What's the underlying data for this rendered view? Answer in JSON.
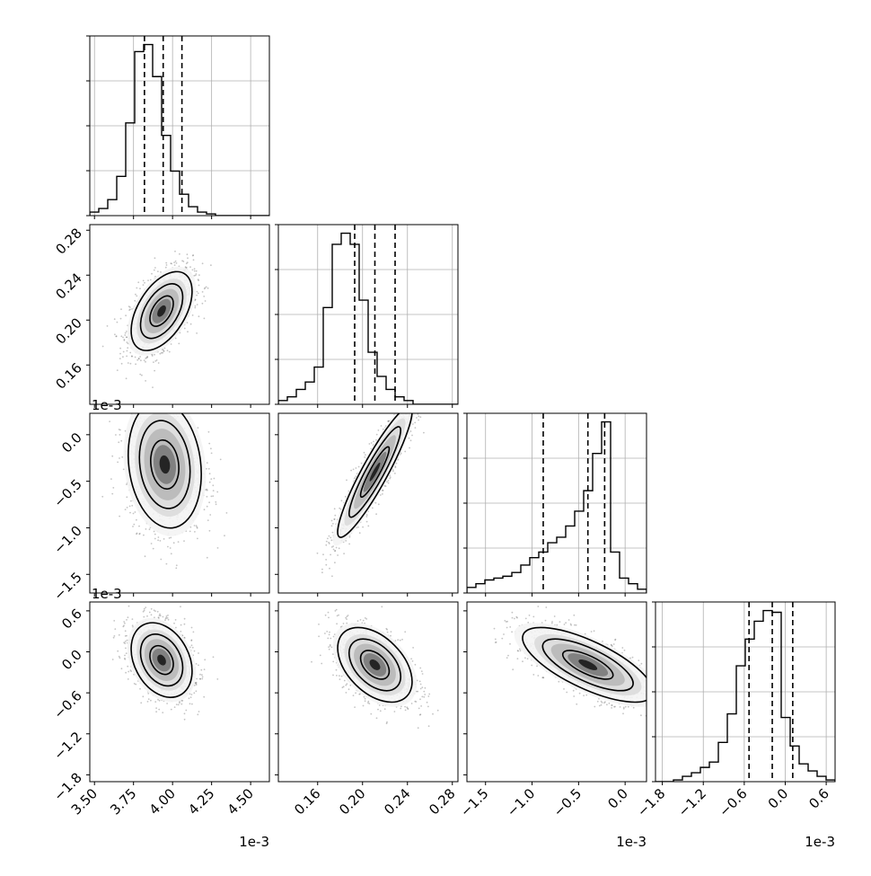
{
  "chart_data": {
    "type": "corner",
    "title": "",
    "grid": true,
    "offset_label": "1e-3",
    "parameters": [
      {
        "index": 0,
        "range": [
          3.47,
          4.62
        ],
        "scale": 0.001,
        "ticks": [
          3.5,
          3.75,
          4.0,
          4.25,
          4.5
        ],
        "tick_labels": [
          "3.50",
          "3.75",
          "4.00",
          "4.25",
          "4.50"
        ],
        "quantiles": [
          3.82,
          3.94,
          4.06
        ]
      },
      {
        "index": 1,
        "range": [
          0.125,
          0.285
        ],
        "scale": 1,
        "ticks": [
          0.16,
          0.2,
          0.24,
          0.28
        ],
        "tick_labels": [
          "0.16",
          "0.20",
          "0.24",
          "0.28"
        ],
        "quantiles": [
          0.193,
          0.211,
          0.229
        ]
      },
      {
        "index": 2,
        "range": [
          -1.7,
          0.23
        ],
        "scale": 0.001,
        "ticks": [
          -1.5,
          -1.0,
          -0.5,
          0.0
        ],
        "tick_labels": [
          "−1.5",
          "−1.0",
          "−0.5",
          "0.0"
        ],
        "quantiles": [
          -0.88,
          -0.4,
          -0.22
        ]
      },
      {
        "index": 3,
        "range": [
          -1.9,
          0.73
        ],
        "scale": 0.001,
        "ticks": [
          -1.8,
          -1.2,
          -0.6,
          0.0,
          0.6
        ],
        "tick_labels": [
          "−1.8",
          "−1.2",
          "−0.6",
          "0.0",
          "0.6"
        ],
        "quantiles": [
          -0.53,
          -0.19,
          0.11
        ]
      }
    ],
    "histograms": [
      {
        "param": 0,
        "edges_start": 3.47,
        "bin_width": 0.0575,
        "counts": [
          2,
          4,
          9,
          22,
          52,
          92,
          96,
          78,
          45,
          25,
          12,
          5,
          2,
          1,
          0,
          0,
          0,
          0,
          0,
          0
        ]
      },
      {
        "param": 1,
        "edges_start": 0.125,
        "bin_width": 0.008,
        "counts": [
          2,
          4,
          8,
          12,
          20,
          52,
          86,
          92,
          86,
          56,
          28,
          15,
          8,
          4,
          2,
          0,
          0,
          0,
          0,
          0
        ]
      },
      {
        "param": 2,
        "edges_start": -1.7,
        "bin_width": 0.0965,
        "counts": [
          3,
          5,
          7,
          8,
          9,
          11,
          15,
          19,
          22,
          27,
          30,
          36,
          44,
          55,
          75,
          92,
          22,
          8,
          5,
          2
        ]
      },
      {
        "param": 3,
        "edges_start": -1.9,
        "bin_width": 0.1315,
        "counts": [
          0,
          0,
          1,
          3,
          5,
          8,
          11,
          22,
          38,
          65,
          80,
          90,
          96,
          95,
          36,
          20,
          10,
          6,
          3,
          1
        ]
      }
    ],
    "pairs": [
      {
        "x": 0,
        "y": 1,
        "mean": [
          3.93,
          0.208
        ],
        "sd": [
          0.1,
          0.018
        ],
        "rho": 0.5
      },
      {
        "x": 0,
        "y": 2,
        "mean": [
          3.95,
          -0.32
        ],
        "sd": [
          0.12,
          0.35
        ],
        "rho": -0.15
      },
      {
        "x": 1,
        "y": 2,
        "mean": [
          0.211,
          -0.4
        ],
        "sd": [
          0.017,
          0.36
        ],
        "rho": 0.92
      },
      {
        "x": 0,
        "y": 3,
        "mean": [
          3.93,
          -0.12
        ],
        "sd": [
          0.1,
          0.28
        ],
        "rho": -0.3
      },
      {
        "x": 1,
        "y": 3,
        "mean": [
          0.211,
          -0.19
        ],
        "sd": [
          0.017,
          0.28
        ],
        "rho": -0.45
      },
      {
        "x": 2,
        "y": 3,
        "mean": [
          -0.4,
          -0.19
        ],
        "sd": [
          0.36,
          0.28
        ],
        "rho": -0.72
      }
    ]
  }
}
